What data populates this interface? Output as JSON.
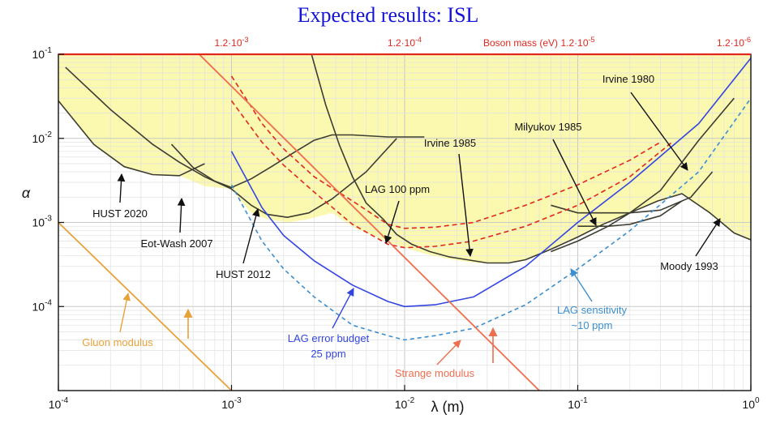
{
  "title": "Expected results: ISL",
  "colors": {
    "title": "#1414d8",
    "excluded_fill": "#fbf8b0",
    "existing_limits": "#3d3d32",
    "boson_axis": "#e0281e",
    "lag_error_budget": "#3446e0",
    "lag_sensitivity": "#3b8fd0",
    "lag_100ppm": "#e0281e",
    "strange_modulus": "#ef6e4e",
    "gluon_modulus": "#e8a23a"
  },
  "chart_data": {
    "type": "line",
    "title": "Expected results: ISL",
    "xlabel": "λ (m)",
    "ylabel": "α",
    "x_scale": "log",
    "y_scale": "log",
    "xlim": [
      0.0001,
      1
    ],
    "ylim": [
      1e-05,
      0.1
    ],
    "grid": true,
    "x_tick_labels": [
      "10-4",
      "10-3",
      "10-2",
      "10-1",
      "100"
    ],
    "x_tick_values": [
      0.0001,
      0.001,
      0.01,
      0.1,
      1
    ],
    "y_tick_labels": [
      "10-1",
      "10-2",
      "10-3",
      "10-4"
    ],
    "y_tick_values": [
      0.1,
      0.01,
      0.001,
      0.0001
    ],
    "top_axis": {
      "label": "Boson mass (eV)",
      "tick_labels": [
        "1.2·10-3",
        "1.2·10-4",
        "1.2·10-5",
        "1.2·10-6"
      ],
      "tick_positions_lambda": [
        0.001,
        0.01,
        0.1,
        1
      ]
    },
    "excluded_region": {
      "boundary": {
        "x": [
          0.0001,
          0.00016,
          0.00024,
          0.00035,
          0.0005,
          0.0007,
          0.001,
          0.0013,
          0.0016,
          0.0021,
          0.0028,
          0.0038,
          0.0052,
          0.0075,
          0.01,
          0.014,
          0.019,
          0.026,
          0.036,
          0.05,
          0.07,
          0.1,
          0.14,
          0.2,
          0.29,
          0.4,
          0.58,
          0.8,
          1
        ],
        "y": [
          0.028,
          0.0085,
          0.0046,
          0.0037,
          0.0036,
          0.0027,
          0.0025,
          0.0013,
          0.0011,
          0.001,
          0.0011,
          0.0013,
          0.00085,
          0.00062,
          0.0005,
          0.00041,
          0.00036,
          0.00033,
          0.00033,
          0.00036,
          0.00048,
          0.00067,
          0.00095,
          0.0013,
          0.0018,
          0.0022,
          0.0013,
          0.00075,
          0.00062
        ]
      }
    },
    "series": [
      {
        "name": "HUST 2020",
        "x": [
          0.0001,
          0.00016,
          0.00024,
          0.00035,
          0.0005,
          0.0007
        ],
        "y": [
          0.028,
          0.0085,
          0.0046,
          0.0037,
          0.0036,
          0.005
        ],
        "style": "solid-dark"
      },
      {
        "name": "Eot-Wash 2007",
        "x": [
          0.00011,
          0.0002,
          0.00035,
          0.0005,
          0.0007,
          0.001,
          0.0013,
          0.0016,
          0.0021,
          0.0028,
          0.0038,
          0.006,
          0.009
        ],
        "y": [
          0.07,
          0.022,
          0.0085,
          0.0052,
          0.0035,
          0.0025,
          0.0016,
          0.00125,
          0.00115,
          0.0013,
          0.0019,
          0.004,
          0.01
        ],
        "style": "solid-dark"
      },
      {
        "name": "HUST 2012",
        "x": [
          0.00045,
          0.0006,
          0.0008,
          0.001,
          0.0013,
          0.0017,
          0.0023,
          0.003,
          0.0038,
          0.005,
          0.008,
          0.013
        ],
        "y": [
          0.0085,
          0.0045,
          0.0031,
          0.0026,
          0.0033,
          0.0046,
          0.0068,
          0.0095,
          0.011,
          0.011,
          0.0104,
          0.0104
        ],
        "style": "solid-dark"
      },
      {
        "name": "",
        "x": [
          0.0029,
          0.0035,
          0.0042,
          0.005,
          0.006,
          0.0075,
          0.009,
          0.011,
          0.014,
          0.018,
          0.023,
          0.03,
          0.04,
          0.05,
          0.07,
          0.1,
          0.14,
          0.2,
          0.29,
          0.4,
          0.58,
          0.8,
          1
        ],
        "y": [
          0.1,
          0.025,
          0.0083,
          0.0035,
          0.0017,
          0.0011,
          0.00072,
          0.00055,
          0.00045,
          0.00039,
          0.00036,
          0.00033,
          0.00033,
          0.00036,
          0.00048,
          0.00067,
          0.00095,
          0.0013,
          0.0018,
          0.0022,
          0.0013,
          0.00075,
          0.00062
        ],
        "style": "solid-dark"
      },
      {
        "name": "Irvine 1980",
        "x": [
          0.07,
          0.1,
          0.15,
          0.2,
          0.3,
          0.5,
          0.8
        ],
        "y": [
          0.00045,
          0.0006,
          0.0009,
          0.0013,
          0.0024,
          0.0095,
          0.03
        ],
        "style": "solid-dark"
      },
      {
        "name": "Milyukov 1985",
        "x": [
          0.07,
          0.1,
          0.15,
          0.2,
          0.3,
          0.45,
          0.6
        ],
        "y": [
          0.0016,
          0.0013,
          0.0013,
          0.0013,
          0.0014,
          0.002,
          0.004
        ],
        "style": "solid-dark"
      },
      {
        "name": "",
        "x": [
          0.1,
          0.15,
          0.2,
          0.3,
          0.4
        ],
        "y": [
          0.0009,
          0.0009,
          0.00095,
          0.0012,
          0.0018
        ],
        "style": "solid-dark"
      },
      {
        "name": "LAG 100 ppm",
        "x": [
          0.001,
          0.0015,
          0.002,
          0.003,
          0.005,
          0.008,
          0.01,
          0.015,
          0.025,
          0.05,
          0.1,
          0.2,
          0.3
        ],
        "y": [
          0.055,
          0.015,
          0.0075,
          0.0035,
          0.0018,
          0.00095,
          0.00085,
          0.00088,
          0.001,
          0.0016,
          0.0028,
          0.0055,
          0.009
        ],
        "style": "dashed-red"
      },
      {
        "name": "",
        "x": [
          0.001,
          0.0015,
          0.002,
          0.003,
          0.005,
          0.008,
          0.01,
          0.015,
          0.025,
          0.05,
          0.1,
          0.2,
          0.35
        ],
        "y": [
          0.028,
          0.009,
          0.0048,
          0.0023,
          0.00095,
          0.00055,
          0.0005,
          0.00052,
          0.0006,
          0.0009,
          0.0016,
          0.0035,
          0.009
        ],
        "style": "dashed-red"
      },
      {
        "name": "LAG error budget",
        "x": [
          0.001,
          0.0015,
          0.002,
          0.003,
          0.005,
          0.008,
          0.01,
          0.015,
          0.025,
          0.05,
          0.1,
          0.2,
          0.5,
          1
        ],
        "y": [
          0.007,
          0.0015,
          0.0007,
          0.00035,
          0.00018,
          0.000115,
          0.0001,
          0.000105,
          0.00013,
          0.0003,
          0.001,
          0.003,
          0.015,
          0.09
        ],
        "style": "solid-blue"
      },
      {
        "name": "LAG sensitivity",
        "x": [
          0.001,
          0.0015,
          0.002,
          0.003,
          0.005,
          0.008,
          0.01,
          0.015,
          0.025,
          0.05,
          0.1,
          0.2,
          0.5,
          1
        ],
        "y": [
          0.0028,
          0.0006,
          0.00028,
          0.00013,
          6e-05,
          4.5e-05,
          4e-05,
          4.5e-05,
          5.5e-05,
          0.000105,
          0.00028,
          0.0008,
          0.004,
          0.03
        ],
        "style": "dashed-blue"
      },
      {
        "name": "Strange modulus",
        "x": [
          0.00065,
          0.06
        ],
        "y": [
          0.1,
          1e-05
        ],
        "style": "solid-orange"
      },
      {
        "name": "Gluon modulus",
        "x": [
          0.0001,
          0.001
        ],
        "y": [
          0.001,
          1e-05
        ],
        "style": "solid-gold"
      }
    ],
    "annotations": [
      {
        "text": "HUST 2020",
        "color": "#111111"
      },
      {
        "text": "Eot-Wash 2007",
        "color": "#111111"
      },
      {
        "text": "HUST 2012",
        "color": "#111111"
      },
      {
        "text": "LAG 100 ppm",
        "color": "#111111"
      },
      {
        "text": "Irvine 1985",
        "color": "#111111"
      },
      {
        "text": "Milyukov 1985",
        "color": "#111111"
      },
      {
        "text": "Irvine 1980",
        "color": "#111111"
      },
      {
        "text": "Moody 1993",
        "color": "#111111"
      },
      {
        "text": "LAG error budget",
        "color": "#3446e0"
      },
      {
        "text": "25 ppm",
        "color": "#3446e0"
      },
      {
        "text": "LAG sensitivity",
        "color": "#3b8fd0"
      },
      {
        "text": "~10 ppm",
        "color": "#3b8fd0"
      },
      {
        "text": "Gluon modulus",
        "color": "#e8a23a"
      },
      {
        "text": "Strange modulus",
        "color": "#ef6e4e"
      }
    ]
  }
}
